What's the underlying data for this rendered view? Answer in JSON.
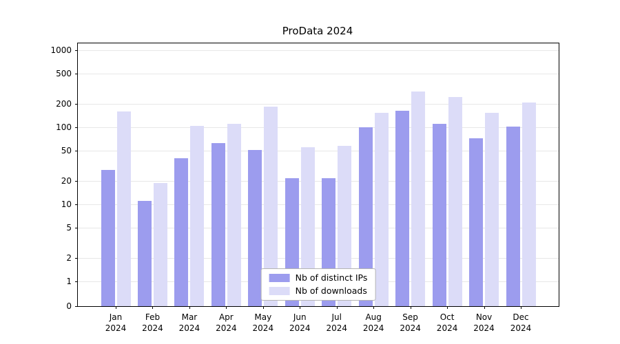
{
  "title": "ProData 2024",
  "chart_data": {
    "type": "bar",
    "title": "ProData 2024",
    "yscale": "symlog",
    "yticks": [
      0,
      1,
      2,
      5,
      10,
      20,
      50,
      100,
      200,
      500,
      1000
    ],
    "ylim": [
      0,
      1200
    ],
    "grid": true,
    "legend_position": "lower center",
    "categories": [
      "Jan 2024",
      "Feb 2024",
      "Mar 2024",
      "Apr 2024",
      "May 2024",
      "Jun 2024",
      "Jul 2024",
      "Aug 2024",
      "Sep 2024",
      "Oct 2024",
      "Nov 2024",
      "Dec 2024"
    ],
    "series": [
      {
        "name": "Nb of distinct IPs",
        "color": "#9c9cee",
        "values": [
          28,
          11,
          40,
          62,
          51,
          22,
          22,
          100,
          165,
          110,
          72,
          102
        ]
      },
      {
        "name": "Nb of downloads",
        "color": "#dcdcf8",
        "values": [
          160,
          19,
          105,
          110,
          185,
          55,
          58,
          155,
          290,
          245,
          155,
          210
        ]
      }
    ]
  }
}
